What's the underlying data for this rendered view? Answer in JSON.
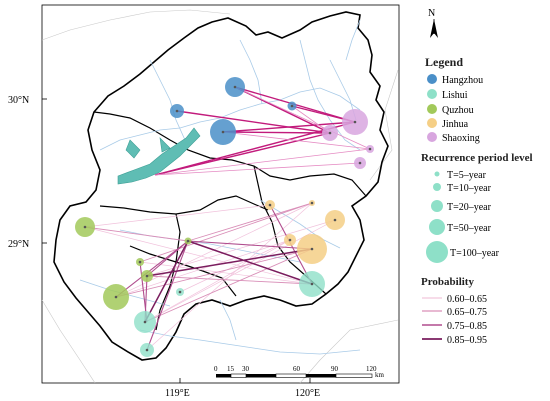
{
  "coordinates": {
    "lat_labels": [
      "30°N",
      "29°N"
    ],
    "lon_labels": [
      "119°E",
      "120°E"
    ]
  },
  "north_arrow": {
    "label": "N",
    "icon": "north-arrow-icon"
  },
  "legend": {
    "title": "Legend",
    "cities": [
      {
        "name": "Hangzhou",
        "color": "#4a8fc8"
      },
      {
        "name": "Lishui",
        "color": "#8ee0c8"
      },
      {
        "name": "Quzhou",
        "color": "#a2c95a"
      },
      {
        "name": "Jinhua",
        "color": "#f5cf86"
      },
      {
        "name": "Shaoxing",
        "color": "#d8a6df"
      }
    ],
    "recurrence_title": "Recurrence period level",
    "recurrence_levels": [
      "T=5–year",
      "T=10–year",
      "T=20–year",
      "T=50–year",
      "T=100–year"
    ],
    "probability_title": "Probability",
    "probability_levels": [
      {
        "label": "0.60–0.65",
        "color": "#f2c6dc"
      },
      {
        "label": "0.65–0.75",
        "color": "#d98fb8"
      },
      {
        "label": "0.75–0.85",
        "color": "#b04d8e"
      },
      {
        "label": "0.85–0.95",
        "color": "#7a1d5e"
      }
    ]
  },
  "scale_bar": {
    "ticks": [
      "0",
      "15",
      "30",
      "60",
      "90",
      "120"
    ],
    "unit": "km"
  }
}
